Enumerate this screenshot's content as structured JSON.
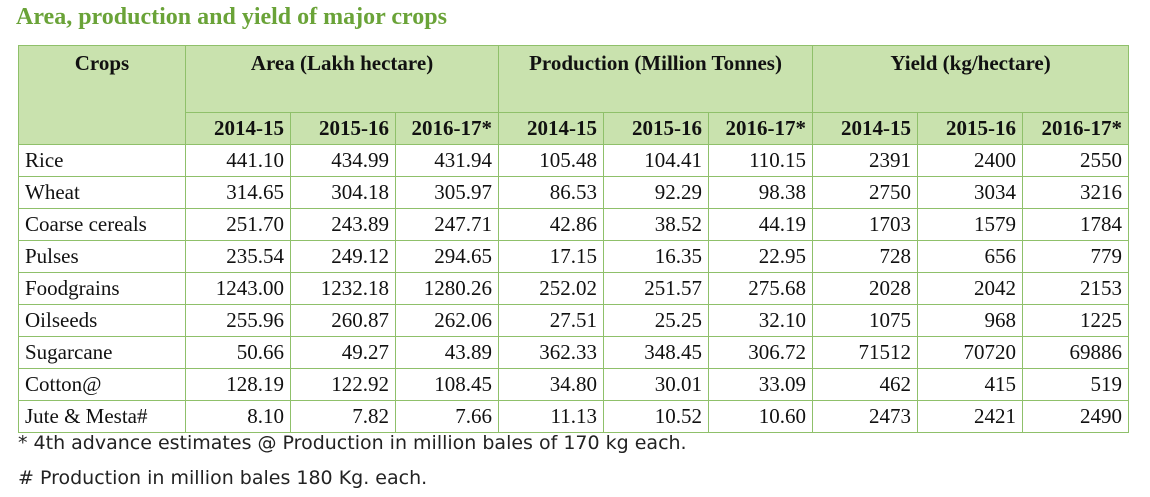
{
  "title": "Area, production and yield of major crops",
  "table": {
    "header_groups": [
      "Crops",
      "Area (Lakh hectare)",
      "Production (Million Tonnes)",
      "Yield (kg/hectare)"
    ],
    "years": [
      "2014-15",
      "2015-16",
      "2016-17*",
      "2014-15",
      "2015-16",
      "2016-17*",
      "2014-15",
      "2015-16",
      "2016-17*"
    ],
    "rows": [
      [
        "Rice",
        "441.10",
        "434.99",
        "431.94",
        "105.48",
        "104.41",
        "110.15",
        "2391",
        "2400",
        "2550"
      ],
      [
        "Wheat",
        "314.65",
        "304.18",
        "305.97",
        "86.53",
        "92.29",
        "98.38",
        "2750",
        "3034",
        "3216"
      ],
      [
        "Coarse cereals",
        "251.70",
        "243.89",
        "247.71",
        "42.86",
        "38.52",
        "44.19",
        "1703",
        "1579",
        "1784"
      ],
      [
        "Pulses",
        "235.54",
        "249.12",
        "294.65",
        "17.15",
        "16.35",
        "22.95",
        "728",
        "656",
        "779"
      ],
      [
        "Foodgrains",
        "1243.00",
        "1232.18",
        "1280.26",
        "252.02",
        "251.57",
        "275.68",
        "2028",
        "2042",
        "2153"
      ],
      [
        "Oilseeds",
        "255.96",
        "260.87",
        "262.06",
        "27.51",
        "25.25",
        "32.10",
        "1075",
        "968",
        "1225"
      ],
      [
        "Sugarcane",
        "50.66",
        "49.27",
        "43.89",
        "362.33",
        "348.45",
        "306.72",
        "71512",
        "70720",
        "69886"
      ],
      [
        "Cotton@",
        "128.19",
        "122.92",
        "108.45",
        "34.80",
        "30.01",
        "33.09",
        "462",
        "415",
        "519"
      ],
      [
        "Jute & Mesta#",
        "8.10",
        "7.82",
        "7.66",
        "11.13",
        "10.52",
        "10.60",
        "2473",
        "2421",
        "2490"
      ]
    ]
  },
  "footnotes": [
    "* 4th advance estimates @ Production in million bales of 170 kg each.",
    "# Production in million bales 180 Kg. each."
  ]
}
